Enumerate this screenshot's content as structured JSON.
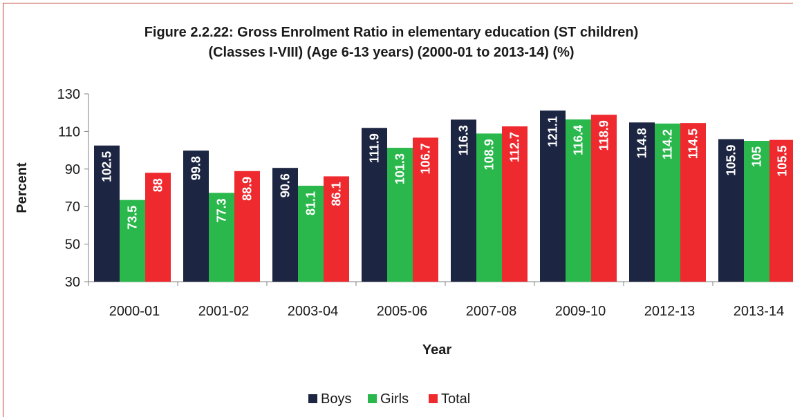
{
  "chart_data": {
    "type": "bar",
    "title": "Figure 2.2.22: Gross Enrolment Ratio in elementary education (ST children)",
    "subtitle": "(Classes I-VIII) (Age 6-13 years) (2000-01 to 2013-14) (%)",
    "xlabel": "Year",
    "ylabel": "Percent",
    "ylim": [
      30,
      130
    ],
    "yticks": [
      30,
      50,
      70,
      90,
      110,
      130
    ],
    "categories": [
      "2000-01",
      "2001-02",
      "2003-04",
      "2005-06",
      "2007-08",
      "2009-10",
      "2012-13",
      "2013-14"
    ],
    "series": [
      {
        "name": "Boys",
        "color": "#1c2541",
        "values": [
          102.5,
          99.8,
          90.6,
          111.9,
          116.3,
          121.1,
          114.8,
          105.9
        ]
      },
      {
        "name": "Girls",
        "color": "#2ab84c",
        "values": [
          73.5,
          77.3,
          81.1,
          101.3,
          108.9,
          116.4,
          114.2,
          105
        ]
      },
      {
        "name": "Total",
        "color": "#ee2a2f",
        "values": [
          88,
          88.9,
          86.1,
          106.7,
          112.7,
          118.9,
          114.5,
          105.5
        ]
      }
    ],
    "grid": false,
    "legend": "bottom"
  }
}
